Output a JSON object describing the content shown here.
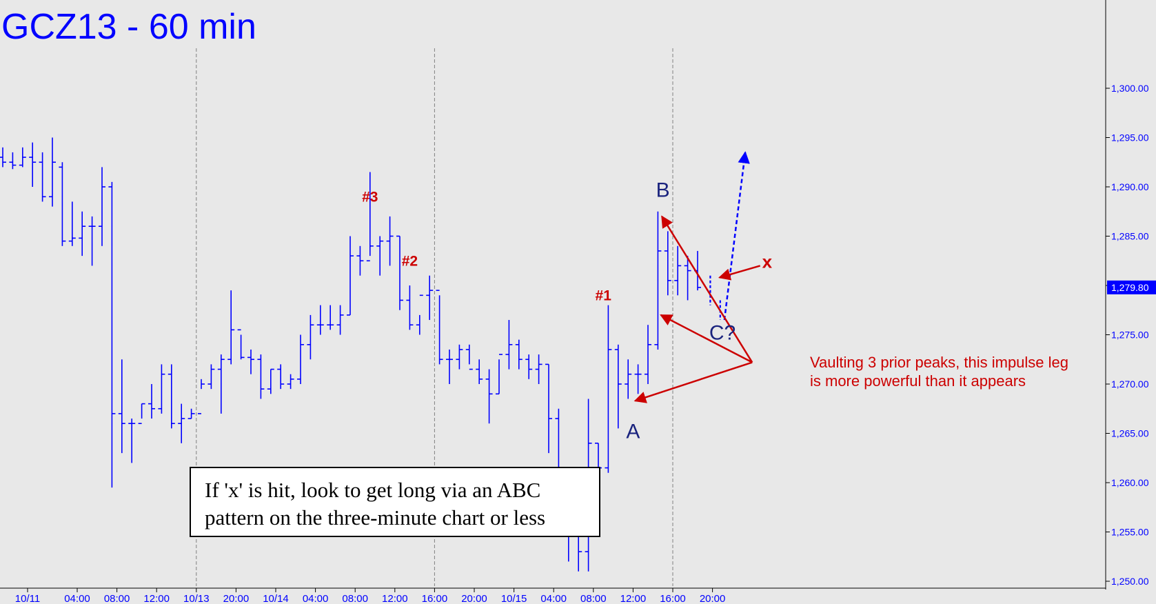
{
  "chart_data": {
    "type": "ohlc",
    "title": "GCZ13 - 60 min",
    "ylim": [
      1248,
      1312
    ],
    "yticks": [
      1250,
      1255,
      1260,
      1265,
      1270,
      1275,
      1280,
      1285,
      1290,
      1295,
      1300
    ],
    "y_tick_labels": [
      "1,250.00",
      "1,255.00",
      "1,260.00",
      "1,265.00",
      "1,270.00",
      "1,275.00",
      "1,280.00",
      "1,285.00",
      "1,290.00",
      "1,295.00",
      "1,300.00"
    ],
    "last_price": 1279.8,
    "last_price_label": "1,279.80",
    "x_tick_labels": [
      {
        "bar": 2.5,
        "label": "10/11"
      },
      {
        "bar": 7.5,
        "label": "04:00"
      },
      {
        "bar": 11.5,
        "label": "08:00"
      },
      {
        "bar": 15.5,
        "label": "12:00"
      },
      {
        "bar": 19.5,
        "label": "10/13"
      },
      {
        "bar": 23.5,
        "label": "20:00"
      },
      {
        "bar": 27.5,
        "label": "10/14"
      },
      {
        "bar": 31.5,
        "label": "04:00"
      },
      {
        "bar": 35.5,
        "label": "08:00"
      },
      {
        "bar": 39.5,
        "label": "12:00"
      },
      {
        "bar": 43.5,
        "label": "16:00"
      },
      {
        "bar": 47.5,
        "label": "20:00"
      },
      {
        "bar": 51.5,
        "label": "10/15"
      },
      {
        "bar": 55.5,
        "label": "04:00"
      },
      {
        "bar": 59.5,
        "label": "08:00"
      },
      {
        "bar": 63.5,
        "label": "12:00"
      },
      {
        "bar": 67.5,
        "label": "16:00"
      },
      {
        "bar": 71.5,
        "label": "20:00"
      }
    ],
    "session_dividers": [
      19.5,
      43.5,
      67.5
    ],
    "bars": [
      [
        1293,
        1294,
        1292,
        1292.5
      ],
      [
        1292.5,
        1293.5,
        1291.8,
        1292.2
      ],
      [
        1292.2,
        1294,
        1292,
        1293
      ],
      [
        1293,
        1294.5,
        1290,
        1292.5
      ],
      [
        1292.5,
        1293.5,
        1288.5,
        1289
      ],
      [
        1289,
        1295,
        1288,
        1292.5
      ],
      [
        1292,
        1292.5,
        1284,
        1284.5
      ],
      [
        1284.5,
        1288.5,
        1284,
        1284.8
      ],
      [
        1284.8,
        1287.5,
        1283,
        1286
      ],
      [
        1286,
        1287,
        1282,
        1286
      ],
      [
        1286,
        1292,
        1284,
        1290
      ],
      [
        1290,
        1290.5,
        1259.5,
        1267
      ],
      [
        1267,
        1272.5,
        1263,
        1266
      ],
      [
        1266,
        1266.5,
        1262,
        1266
      ],
      [
        1266,
        1268,
        1266.5,
        1268
      ],
      [
        1268,
        1270,
        1266.5,
        1267.5
      ],
      [
        1267.5,
        1272,
        1267,
        1271
      ],
      [
        1271,
        1272,
        1265.5,
        1266
      ],
      [
        1266,
        1268,
        1264,
        1266.5
      ],
      [
        1266.5,
        1267.5,
        1266.5,
        1267
      ],
      [
        1267,
        1270.5,
        1269.5,
        1270
      ],
      [
        1270,
        1272,
        1269.5,
        1271.5
      ],
      [
        1271.5,
        1273,
        1267,
        1272.5
      ],
      [
        1272.5,
        1279.5,
        1272,
        1275.5
      ],
      [
        1275.5,
        1275,
        1272.5,
        1272.7
      ],
      [
        1272.7,
        1273.5,
        1271,
        1272.5
      ],
      [
        1272.5,
        1273,
        1268.5,
        1269.5
      ],
      [
        1269.5,
        1271.5,
        1269,
        1271.5
      ],
      [
        1271.5,
        1272,
        1269.5,
        1270
      ],
      [
        1270,
        1271,
        1269.5,
        1270.5
      ],
      [
        1270.5,
        1275,
        1270,
        1274
      ],
      [
        1274,
        1277,
        1272.5,
        1276
      ],
      [
        1276,
        1278,
        1275,
        1276
      ],
      [
        1276,
        1278,
        1275.5,
        1276
      ],
      [
        1276,
        1278,
        1275,
        1277
      ],
      [
        1277,
        1285,
        1277,
        1283
      ],
      [
        1283,
        1284,
        1281,
        1282.5
      ],
      [
        1282.5,
        1291.5,
        1283,
        1284
      ],
      [
        1284,
        1285,
        1281,
        1284.5
      ],
      [
        1284.5,
        1287,
        1282,
        1285
      ],
      [
        1285,
        1285,
        1277.5,
        1278.5
      ],
      [
        1278.5,
        1280,
        1275.5,
        1276
      ],
      [
        1276,
        1277,
        1275,
        1279
      ],
      [
        1279,
        1281,
        1276.5,
        1279.5
      ],
      [
        1279.5,
        1279,
        1272,
        1272.5
      ],
      [
        1272.5,
        1273.5,
        1270,
        1272.5
      ],
      [
        1272.5,
        1274,
        1271.5,
        1273.5
      ],
      [
        1273.5,
        1274,
        1272,
        1271.5
      ],
      [
        1271.5,
        1272.5,
        1270,
        1270.5
      ],
      [
        1270.5,
        1271.5,
        1266,
        1269
      ],
      [
        1269,
        1272.5,
        1269,
        1273
      ],
      [
        1273,
        1276.5,
        1271.5,
        1274
      ],
      [
        1274,
        1274.5,
        1271.5,
        1272.5
      ],
      [
        1272.5,
        1273,
        1270.5,
        1271.5
      ],
      [
        1271.5,
        1273,
        1270,
        1272
      ],
      [
        1272,
        1272,
        1263,
        1266.5
      ],
      [
        1266.5,
        1267.5,
        1255,
        1255.5
      ],
      [
        1255.5,
        1256.5,
        1252,
        1256
      ],
      [
        1256,
        1258.5,
        1251,
        1253
      ],
      [
        1253,
        1268.5,
        1251,
        1264
      ],
      [
        1264,
        1264,
        1255,
        1261.5
      ],
      [
        1261.5,
        1278,
        1261,
        1273.5
      ],
      [
        1273.5,
        1274,
        1265.5,
        1270
      ],
      [
        1270,
        1272.5,
        1268.5,
        1271
      ],
      [
        1271,
        1272,
        1269,
        1271
      ],
      [
        1271,
        1276,
        1270,
        1274
      ],
      [
        1274,
        1287.5,
        1273.5,
        1283.5
      ],
      [
        1283.5,
        1285.5,
        1279,
        1280.5
      ],
      [
        1280.5,
        1284,
        1279,
        1282
      ],
      [
        1282,
        1283,
        1278.5,
        1281.5
      ],
      [
        1281.5,
        1283.5,
        1279.5,
        1279.8
      ]
    ],
    "projection_dashed_bars": [
      {
        "bar": 71,
        "high": 1281,
        "low": 1278
      },
      {
        "bar": 72,
        "high": 1278.5,
        "low": 1276.5
      }
    ],
    "annotations": [
      {
        "text": "#3",
        "bar": 37,
        "price": 1288.5
      },
      {
        "text": "#2",
        "bar": 41,
        "price": 1282
      },
      {
        "text": "#1",
        "bar": 60.5,
        "price": 1278.5
      },
      {
        "text": "B",
        "bar": 66.5,
        "price": 1289
      },
      {
        "text": "A",
        "bar": 63.5,
        "price": 1264.5
      },
      {
        "text": "C?",
        "bar": 72.5,
        "price": 1274.5
      },
      {
        "text": "x",
        "bar": 77,
        "price": 1281.8
      }
    ],
    "commentary": [
      "Vaulting 3 prior peaks, this impulse leg",
      "is more powerful than it appears"
    ],
    "note": [
      "If  'x' is hit, look to get long via an ABC",
      "pattern on the three-minute chart or less"
    ]
  },
  "colors": {
    "bars": "#0000ff",
    "annotation_red": "#cc0000",
    "wave_label": "#1a237e",
    "title": "#0000ff",
    "grid_divider": "#808080",
    "price_tag_bg": "#0000ff"
  }
}
